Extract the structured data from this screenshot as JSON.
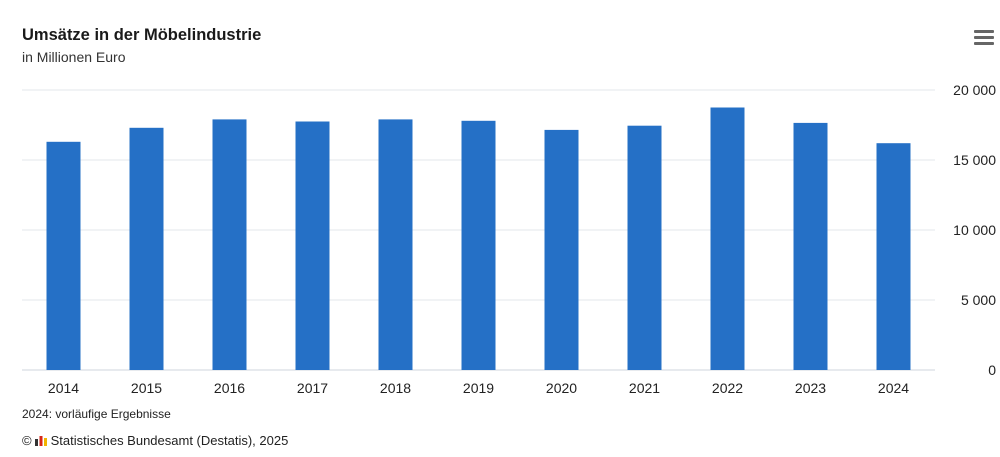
{
  "chart_data": {
    "type": "bar",
    "title": "Umsätze in der Möbelindustrie",
    "subtitle": "in Millionen Euro",
    "categories": [
      "2014",
      "2015",
      "2016",
      "2017",
      "2018",
      "2019",
      "2020",
      "2021",
      "2022",
      "2023",
      "2024"
    ],
    "values": [
      16300,
      17300,
      17900,
      17750,
      17900,
      17800,
      17150,
      17450,
      18750,
      17650,
      16200
    ],
    "ylim": [
      0,
      20000
    ],
    "yticks": [
      0,
      5000,
      10000,
      15000,
      20000
    ],
    "ytick_labels": [
      "0",
      "5 000",
      "10 000",
      "15 000",
      "20 000"
    ],
    "y_axis_side": "right",
    "grid": true,
    "bar_color": "#2570c6"
  },
  "footer": {
    "note": "2024: vorläufige Ergebnisse",
    "copyright_symbol": "©",
    "source": "Statistisches Bundesamt (Destatis), 2025"
  },
  "icons": {
    "menu": "hamburger-menu-icon",
    "logo": "destatis-logo-icon"
  }
}
